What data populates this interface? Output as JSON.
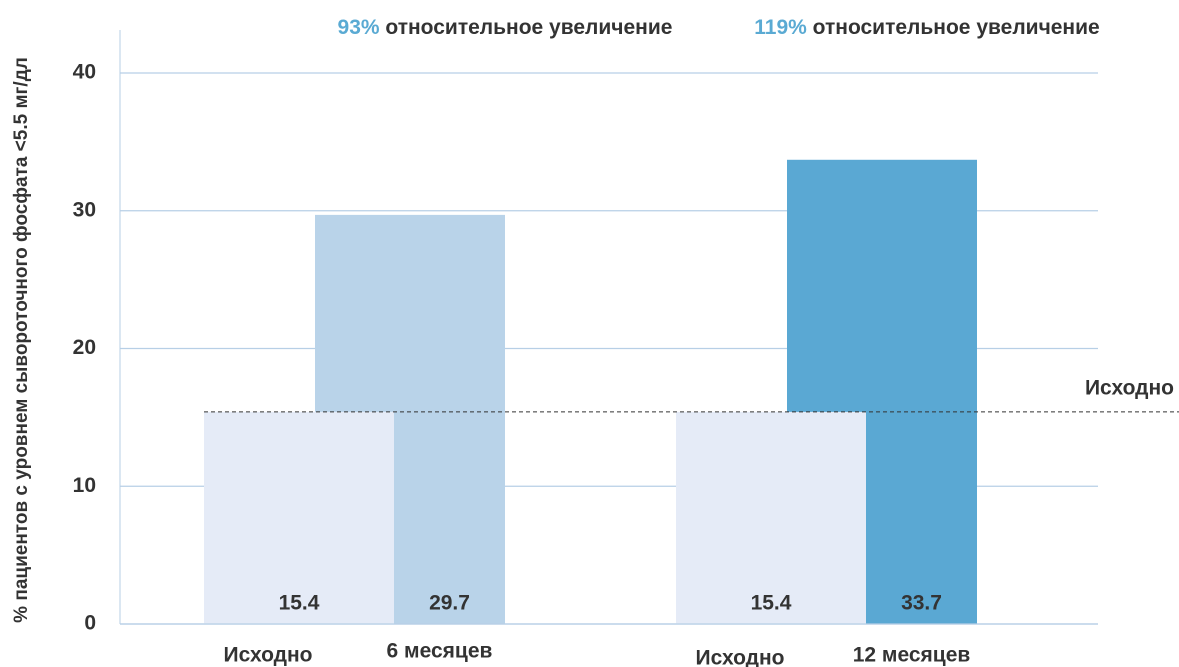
{
  "chart_data": {
    "type": "bar",
    "y_label": "% пациентов с уровнем сывороточного фосфата <5.5 мг/дл",
    "ylim": [
      0,
      40
    ],
    "yticks": [
      0,
      10,
      20,
      30,
      40
    ],
    "grid": true,
    "annotations": [
      {
        "highlight": "93%",
        "text": "относительное увеличение"
      },
      {
        "highlight": "119%",
        "text": "относительное увеличение"
      }
    ],
    "reference_line": {
      "value": 15.4,
      "label": "Исходно"
    },
    "groups": [
      {
        "bars": [
          {
            "label": "Исходно",
            "value": 15.4,
            "color": "#e5ebf7",
            "label_color": "#333333"
          },
          {
            "label": "6 месяцев",
            "value": 29.7,
            "color": "#b9d3e9",
            "label_color": "#ffffff"
          }
        ]
      },
      {
        "bars": [
          {
            "label": "Исходно",
            "value": 15.4,
            "color": "#e5ebf7",
            "label_color": "#333333"
          },
          {
            "label": "12 месяцев",
            "value": 33.7,
            "color": "#5aa8d3",
            "label_color": "#ffffff"
          }
        ]
      }
    ]
  }
}
